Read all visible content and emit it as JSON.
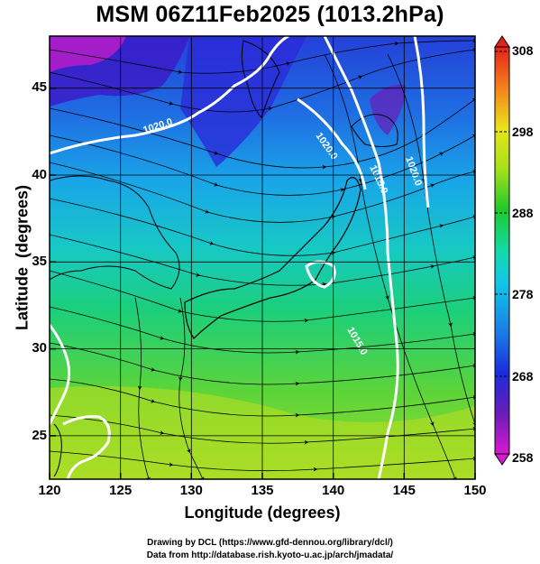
{
  "title": "MSM 06Z11Feb2025 (1013.2hPa)",
  "map": {
    "x_axis": {
      "label": "Longitude (degrees)",
      "range": [
        120,
        150
      ],
      "ticks": [
        "120",
        "125",
        "130",
        "135",
        "140",
        "145",
        "150"
      ]
    },
    "y_axis": {
      "label": "Latitude  (degrees)",
      "range": [
        22.5,
        48
      ],
      "ticks": [
        "45",
        "40",
        "35",
        "30",
        "25"
      ]
    },
    "grid": true,
    "isobar_labels": [
      "1020.0",
      "1020.0",
      "1020.0",
      "1015.0",
      "1015.0"
    ],
    "colorbar": {
      "min": 258,
      "max": 308,
      "ticks": [
        "308",
        "298",
        "288",
        "278",
        "268",
        "258"
      ],
      "units_hint": "temperature (K)"
    }
  },
  "credits": {
    "line1": "Drawing by DCL (https://www.gfd-dennou.org/library/dcl/)",
    "line2": "Data from http://database.rish.kyoto-u.ac.jp/arch/jmadata/"
  }
}
